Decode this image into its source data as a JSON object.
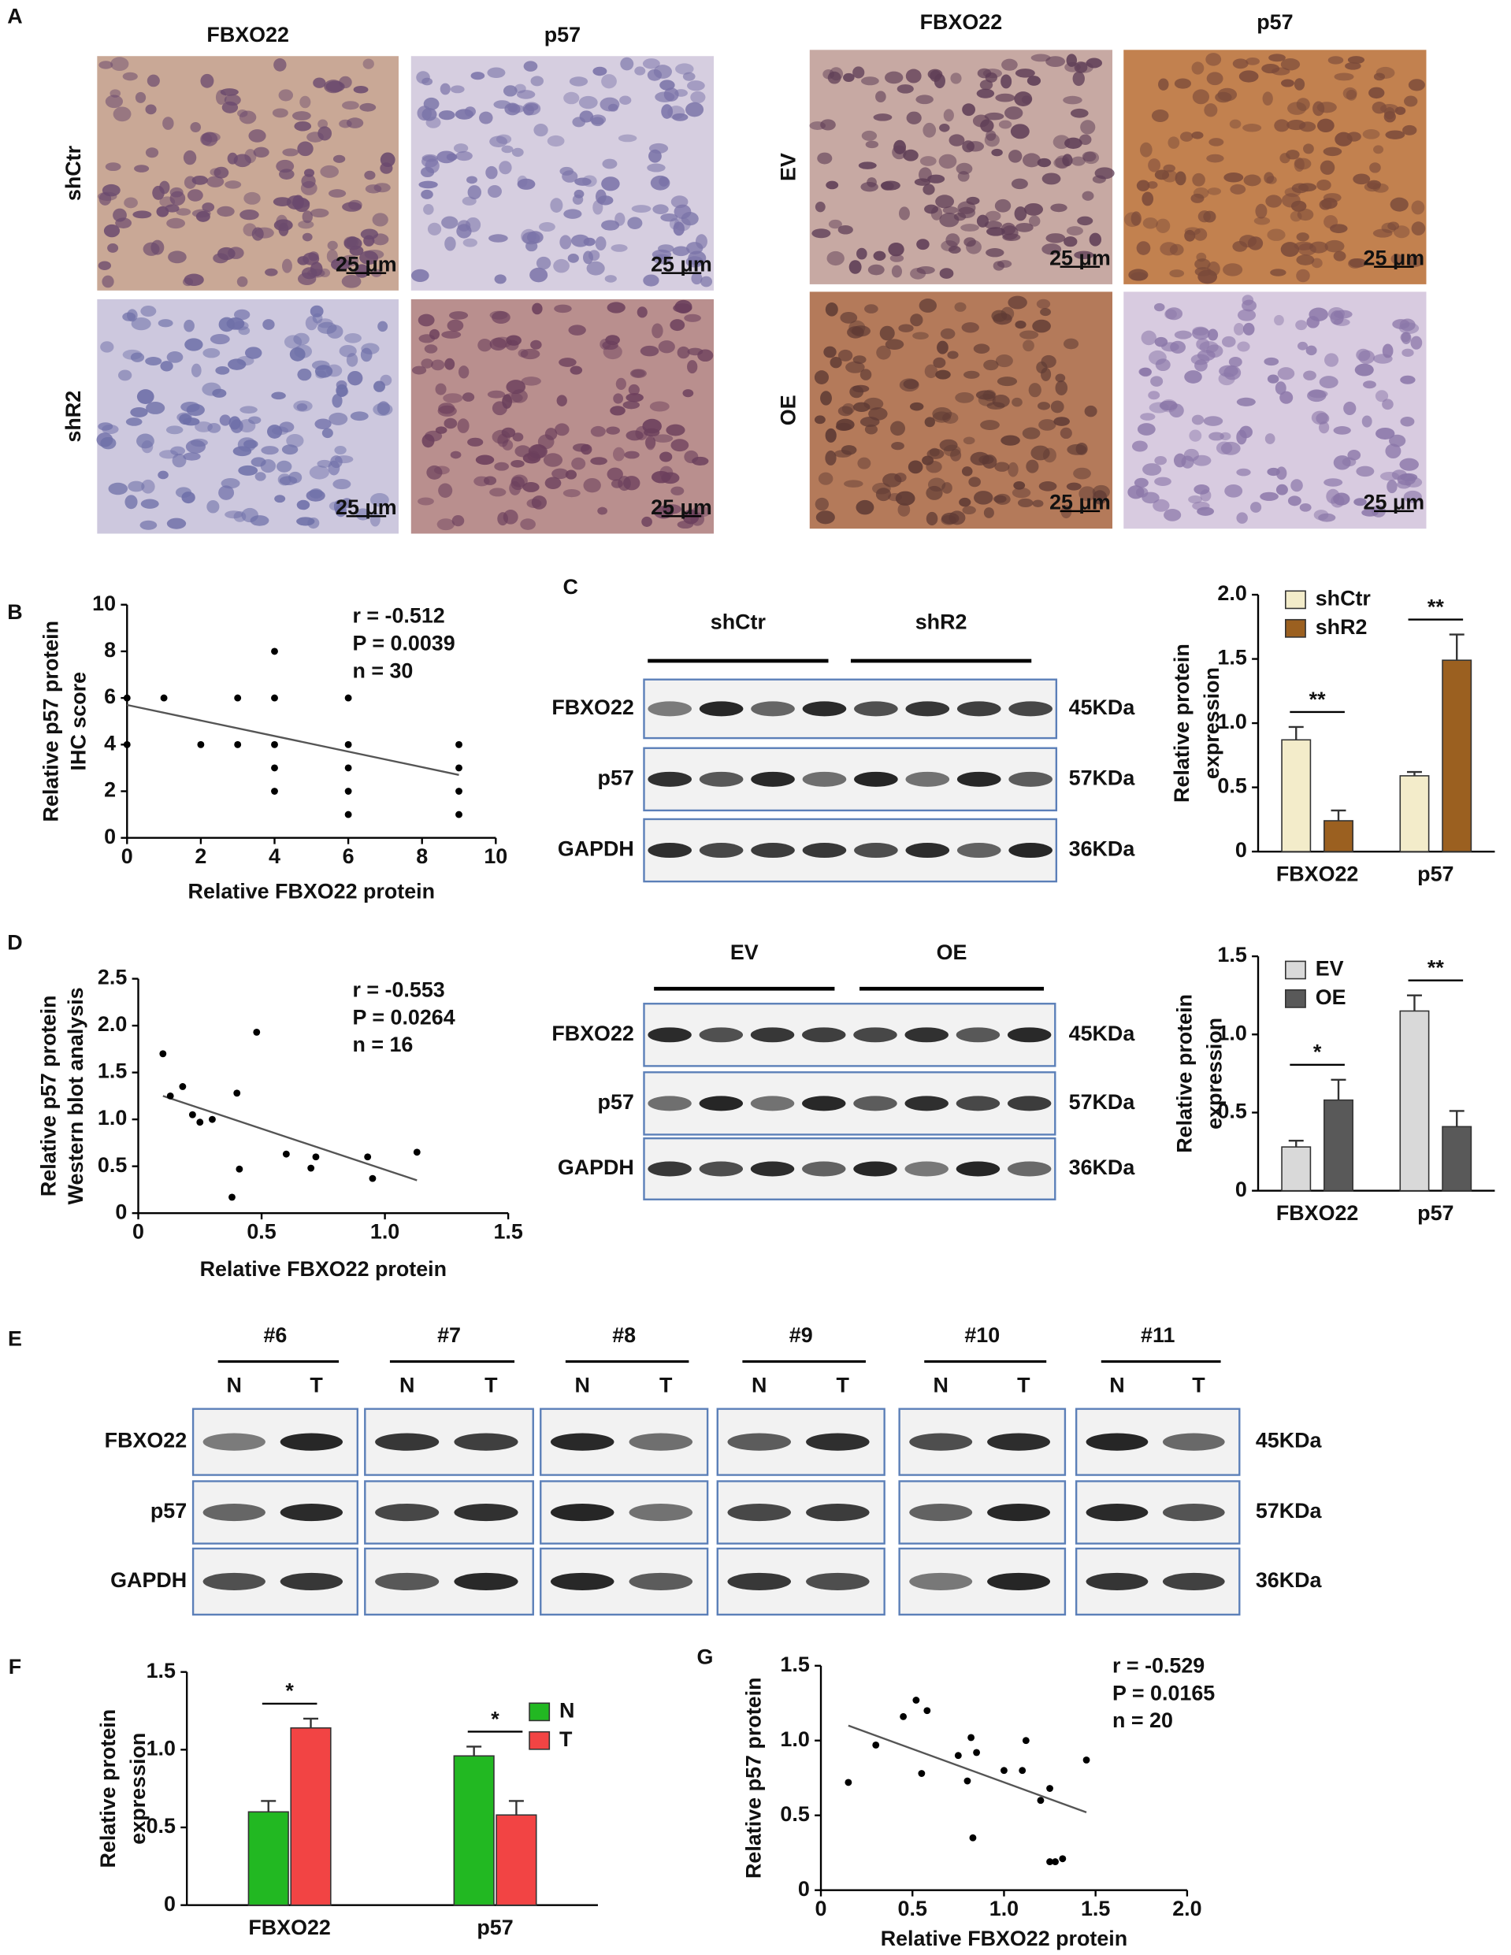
{
  "panel_labels": [
    "A",
    "B",
    "C",
    "D",
    "E",
    "F",
    "G"
  ],
  "ihc": [
    {
      "columns": [
        "FBXO22",
        "p57"
      ],
      "rows": [
        "shCtr",
        "shR2"
      ]
    },
    {
      "columns": [
        "FBXO22",
        "p57"
      ],
      "rows": [
        "EV",
        "OE"
      ]
    }
  ],
  "scale_bar": "25 μm",
  "blots": [
    {
      "groups": [
        "shCtr",
        "shR2"
      ],
      "rows": [
        "FBXO22",
        "p57",
        "GAPDH"
      ],
      "sizes": [
        "45KDa",
        "57KDa",
        "36KDa"
      ]
    },
    {
      "groups": [
        "EV",
        "OE"
      ],
      "rows": [
        "FBXO22",
        "p57",
        "GAPDH"
      ],
      "sizes": [
        "45KDa",
        "57KDa",
        "36KDa"
      ]
    },
    {
      "groups": [
        "#6",
        "#7",
        "#8",
        "#9",
        "#10",
        "#11"
      ],
      "lanes": [
        "N",
        "T"
      ],
      "rows": [
        "FBXO22",
        "p57",
        "GAPDH"
      ],
      "sizes": [
        "45KDa",
        "57KDa",
        "36KDa"
      ]
    }
  ],
  "chart_data": [
    {
      "type": "scatter",
      "x": [
        0,
        0,
        1,
        2,
        3,
        3,
        4,
        4,
        4,
        4,
        4,
        6,
        6,
        6,
        6,
        6,
        9,
        9,
        9,
        9
      ],
      "values": [
        6,
        4,
        6,
        4,
        6,
        4,
        8,
        6,
        4,
        3,
        2,
        6,
        4,
        3,
        2,
        1,
        4,
        3,
        2,
        1
      ],
      "trendline": {
        "x": [
          0,
          9
        ],
        "values": [
          5.7,
          2.7
        ]
      },
      "xlim": [
        0,
        10
      ],
      "xticks": [
        0,
        2,
        4,
        6,
        8,
        10
      ],
      "ylim": [
        0,
        10
      ],
      "yticks": [
        0,
        2,
        4,
        6,
        8,
        10
      ],
      "xlabel": "Relative FBXO22 protein",
      "ylabel": [
        "Relative p57 protein",
        "IHC score"
      ],
      "annotations": [
        "r = -0.512",
        "P = 0.0039",
        "n = 30"
      ]
    },
    {
      "type": "bar",
      "categories": [
        "FBXO22",
        "p57"
      ],
      "series": [
        {
          "name": "shCtr",
          "color": "#f3ecca",
          "values": [
            0.87,
            0.59
          ],
          "errors": [
            0.1,
            0.03
          ]
        },
        {
          "name": "shR2",
          "color": "#9b6020",
          "values": [
            0.24,
            1.49
          ],
          "errors": [
            0.08,
            0.2
          ]
        }
      ],
      "significance": [
        "**",
        "**"
      ],
      "ylim": [
        0,
        2.0
      ],
      "yticks": [
        0,
        0.5,
        {
          "value": 1.0,
          "label": "1.0"
        },
        1.5,
        {
          "value": 2.0,
          "label": "2.0"
        }
      ],
      "ylabel": [
        "Relative protein",
        "expression"
      ]
    },
    {
      "type": "scatter",
      "x": [
        0.1,
        0.13,
        0.18,
        0.22,
        0.25,
        0.3,
        0.38,
        0.4,
        0.41,
        0.48,
        0.6,
        0.7,
        0.72,
        0.93,
        0.95,
        1.13
      ],
      "values": [
        1.7,
        1.25,
        1.35,
        1.05,
        0.97,
        1.0,
        0.17,
        1.28,
        0.47,
        1.93,
        0.63,
        0.48,
        0.6,
        0.6,
        0.37,
        0.65
      ],
      "trendline": {
        "x": [
          0.1,
          1.13
        ],
        "values": [
          1.25,
          0.35
        ]
      },
      "xlim": [
        0,
        1.5
      ],
      "xticks": [
        0,
        0.5,
        {
          "value": 1.0,
          "label": "1.0"
        },
        1.5
      ],
      "ylim": [
        0,
        2.5
      ],
      "yticks": [
        0,
        0.5,
        {
          "value": 1.0,
          "label": "1.0"
        },
        1.5,
        {
          "value": 2.0,
          "label": "2.0"
        },
        2.5
      ],
      "xlabel": "Relative FBXO22 protein",
      "ylabel": [
        "Relative p57 protein",
        "Western blot analysis"
      ],
      "annotations": [
        "r = -0.553",
        "P = 0.0264",
        "n = 16"
      ]
    },
    {
      "type": "bar",
      "categories": [
        "FBXO22",
        "p57"
      ],
      "series": [
        {
          "name": "EV",
          "color": "#d9d9d9",
          "values": [
            0.28,
            1.15
          ],
          "errors": [
            0.04,
            0.1
          ]
        },
        {
          "name": "OE",
          "color": "#595959",
          "values": [
            0.58,
            0.41
          ],
          "errors": [
            0.13,
            0.1
          ]
        }
      ],
      "significance": [
        "*",
        "**"
      ],
      "ylim": [
        0,
        1.5
      ],
      "yticks": [
        0,
        0.5,
        {
          "value": 1.0,
          "label": "1.0"
        },
        1.5
      ],
      "ylabel": [
        "Relative protein",
        "expression"
      ]
    },
    {
      "type": "bar",
      "categories": [
        "FBXO22",
        "p57"
      ],
      "series": [
        {
          "name": "N",
          "color": "#22b822",
          "values": [
            0.6,
            0.96
          ],
          "errors": [
            0.07,
            0.06
          ]
        },
        {
          "name": "T",
          "color": "#f24444",
          "values": [
            1.14,
            0.58
          ],
          "errors": [
            0.06,
            0.09
          ]
        }
      ],
      "significance": [
        "*",
        "*"
      ],
      "ylim": [
        0,
        1.5
      ],
      "yticks": [
        0,
        0.5,
        {
          "value": 1.0,
          "label": "1.0"
        },
        1.5
      ],
      "ylabel": [
        "Relative protein",
        "expression"
      ]
    },
    {
      "type": "scatter",
      "x": [
        0.15,
        0.3,
        0.45,
        0.52,
        0.55,
        0.58,
        0.75,
        0.8,
        0.82,
        0.83,
        0.85,
        1.0,
        1.1,
        1.12,
        1.2,
        1.25,
        1.25,
        1.28,
        1.32,
        1.45
      ],
      "values": [
        0.72,
        0.97,
        1.16,
        1.27,
        0.78,
        1.2,
        0.9,
        0.73,
        1.02,
        0.35,
        0.92,
        0.8,
        0.8,
        1.0,
        0.6,
        0.68,
        0.19,
        0.19,
        0.21,
        0.87
      ],
      "trendline": {
        "x": [
          0.15,
          1.45
        ],
        "values": [
          1.1,
          0.52
        ]
      },
      "xlim": [
        0,
        2.0
      ],
      "xticks": [
        0,
        0.5,
        {
          "value": 1.0,
          "label": "1.0"
        },
        1.5,
        {
          "value": 2.0,
          "label": "2.0"
        }
      ],
      "ylim": [
        0,
        1.5
      ],
      "yticks": [
        0,
        0.5,
        {
          "value": 1.0,
          "label": "1.0"
        },
        1.5
      ],
      "xlabel": "Relative FBXO22 protein",
      "ylabel": [
        "Relative p57 protein"
      ],
      "annotations": [
        "r = -0.529",
        "P = 0.0165",
        "n = 20"
      ]
    }
  ]
}
